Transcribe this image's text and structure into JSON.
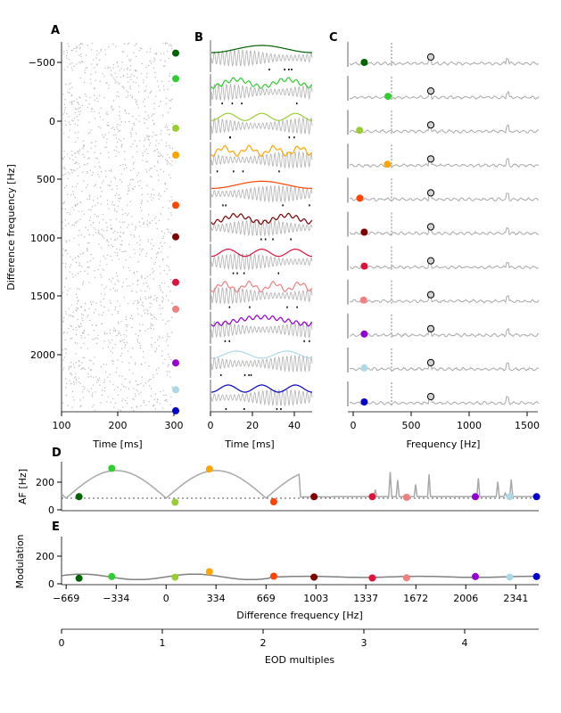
{
  "panels": {
    "A": {
      "letter": "A",
      "xlabel": "Time [ms]",
      "ylabel": "Difference frequency [Hz]",
      "xticks": [
        "100",
        "200",
        "300"
      ],
      "yticks": [
        "−500",
        "0",
        "500",
        "1000",
        "1500",
        "2000"
      ]
    },
    "B": {
      "letter": "B",
      "xlabel": "Time [ms]",
      "xticks": [
        "0",
        "20",
        "40"
      ]
    },
    "C": {
      "letter": "C",
      "xlabel": "Frequency [Hz]",
      "xticks": [
        "0",
        "500",
        "1000",
        "1500"
      ]
    },
    "D": {
      "letter": "D",
      "ylabel": "AF [Hz]",
      "yticks": [
        "0",
        "200"
      ]
    },
    "E": {
      "letter": "E",
      "ylabel": "Modulation",
      "yticks": [
        "0",
        "200"
      ],
      "xlabel": "Difference frequency [Hz]",
      "xticks": [
        "−669",
        "−334",
        "0",
        "334",
        "669",
        "1003",
        "1337",
        "1672",
        "2006",
        "2341"
      ]
    },
    "F": {
      "xlabel": "EOD multiples",
      "xticks": [
        "0",
        "1",
        "2",
        "3",
        "4"
      ]
    }
  },
  "chart_data": {
    "type": "scatter",
    "eod_frequency_hz": 669,
    "examples": [
      {
        "df": -583,
        "color": "#006400",
        "af": 95,
        "mod": 40
      },
      {
        "df": -364,
        "color": "#32cd32",
        "af": 300,
        "mod": 52
      },
      {
        "df": 60,
        "color": "#9acd32",
        "af": 55,
        "mod": 48
      },
      {
        "df": 290,
        "color": "#ffa500",
        "af": 295,
        "mod": 88
      },
      {
        "df": 720,
        "color": "#ff4500",
        "af": 58,
        "mod": 55
      },
      {
        "df": 990,
        "color": "#800000",
        "af": 95,
        "mod": 48
      },
      {
        "df": 1380,
        "color": "#dc143c",
        "af": 95,
        "mod": 42
      },
      {
        "df": 1610,
        "color": "#f08080",
        "af": 90,
        "mod": 43
      },
      {
        "df": 2070,
        "color": "#9400d3",
        "af": 95,
        "mod": 52
      },
      {
        "df": 2300,
        "color": "#add8e6",
        "af": 95,
        "mod": 48
      },
      {
        "df": 2480,
        "color": "#0000cd",
        "af": 95,
        "mod": 52
      }
    ]
  }
}
